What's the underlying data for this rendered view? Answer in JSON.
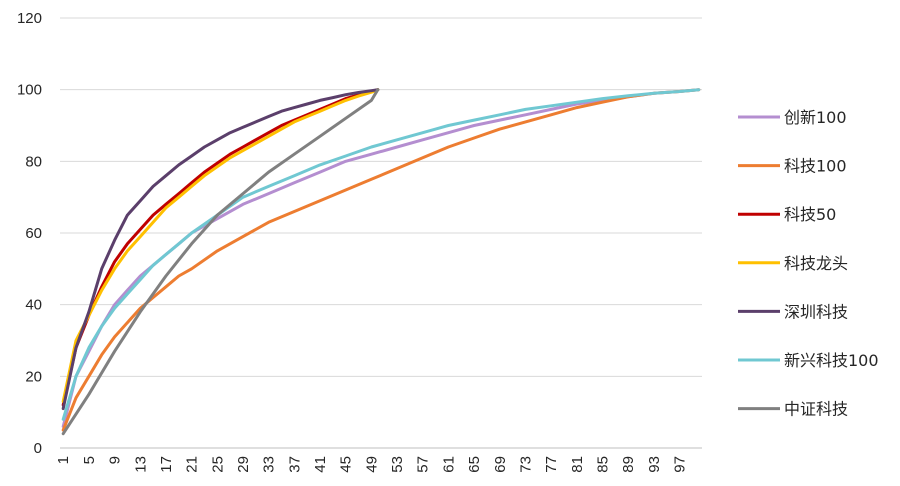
{
  "chart_data": {
    "type": "line",
    "title": "",
    "xlabel": "",
    "ylabel": "",
    "ylim": [
      0,
      120
    ],
    "yticks": [
      0,
      20,
      40,
      60,
      80,
      100,
      120
    ],
    "xlim": [
      1,
      100
    ],
    "xticks": [
      1,
      5,
      9,
      13,
      17,
      21,
      25,
      29,
      33,
      37,
      41,
      45,
      49,
      53,
      57,
      61,
      65,
      69,
      73,
      77,
      81,
      85,
      89,
      93,
      97
    ],
    "grid": "horizontal",
    "legend_position": "right",
    "series": [
      {
        "name": "创新100",
        "color": "#b48ed0",
        "points": [
          [
            1,
            6
          ],
          [
            3,
            20
          ],
          [
            5,
            27
          ],
          [
            7,
            34
          ],
          [
            9,
            40
          ],
          [
            11,
            44
          ],
          [
            13,
            48
          ],
          [
            15,
            51
          ],
          [
            17,
            54
          ],
          [
            19,
            57
          ],
          [
            21,
            60
          ],
          [
            25,
            64
          ],
          [
            29,
            68
          ],
          [
            33,
            71
          ],
          [
            37,
            74
          ],
          [
            41,
            77
          ],
          [
            45,
            80
          ],
          [
            49,
            82
          ],
          [
            53,
            84
          ],
          [
            57,
            86
          ],
          [
            61,
            88
          ],
          [
            65,
            90
          ],
          [
            69,
            91.5
          ],
          [
            73,
            93
          ],
          [
            77,
            94.5
          ],
          [
            81,
            96
          ],
          [
            85,
            97
          ],
          [
            89,
            98
          ],
          [
            93,
            99
          ],
          [
            97,
            99.5
          ],
          [
            100,
            100
          ]
        ]
      },
      {
        "name": "科技100",
        "color": "#ed7d31",
        "points": [
          [
            1,
            5
          ],
          [
            3,
            14
          ],
          [
            5,
            20
          ],
          [
            7,
            26
          ],
          [
            9,
            31
          ],
          [
            11,
            35
          ],
          [
            13,
            39
          ],
          [
            15,
            42
          ],
          [
            17,
            45
          ],
          [
            19,
            48
          ],
          [
            21,
            50
          ],
          [
            25,
            55
          ],
          [
            29,
            59
          ],
          [
            33,
            63
          ],
          [
            37,
            66
          ],
          [
            41,
            69
          ],
          [
            45,
            72
          ],
          [
            49,
            75
          ],
          [
            53,
            78
          ],
          [
            57,
            81
          ],
          [
            61,
            84
          ],
          [
            65,
            86.5
          ],
          [
            69,
            89
          ],
          [
            73,
            91
          ],
          [
            77,
            93
          ],
          [
            81,
            95
          ],
          [
            85,
            96.5
          ],
          [
            89,
            98
          ],
          [
            93,
            99
          ],
          [
            97,
            99.5
          ],
          [
            100,
            100
          ]
        ]
      },
      {
        "name": "科技50",
        "color": "#c00000",
        "points": [
          [
            1,
            12
          ],
          [
            3,
            28
          ],
          [
            5,
            37
          ],
          [
            7,
            45
          ],
          [
            9,
            52
          ],
          [
            11,
            57
          ],
          [
            13,
            61
          ],
          [
            15,
            65
          ],
          [
            17,
            68
          ],
          [
            19,
            71
          ],
          [
            21,
            74
          ],
          [
            23,
            77
          ],
          [
            25,
            79.5
          ],
          [
            27,
            82
          ],
          [
            29,
            84
          ],
          [
            31,
            86
          ],
          [
            33,
            88
          ],
          [
            35,
            90
          ],
          [
            37,
            91.5
          ],
          [
            39,
            93
          ],
          [
            41,
            94.5
          ],
          [
            43,
            96
          ],
          [
            45,
            97.5
          ],
          [
            47,
            98.5
          ],
          [
            49,
            99.5
          ],
          [
            50,
            100
          ]
        ]
      },
      {
        "name": "科技龙头",
        "color": "#ffc000",
        "points": [
          [
            1,
            13
          ],
          [
            3,
            30
          ],
          [
            5,
            37
          ],
          [
            7,
            44
          ],
          [
            9,
            50
          ],
          [
            11,
            55
          ],
          [
            13,
            59
          ],
          [
            15,
            63
          ],
          [
            17,
            67
          ],
          [
            19,
            70
          ],
          [
            21,
            73
          ],
          [
            23,
            76
          ],
          [
            25,
            78.5
          ],
          [
            27,
            81
          ],
          [
            29,
            83
          ],
          [
            31,
            85
          ],
          [
            33,
            87
          ],
          [
            35,
            89
          ],
          [
            37,
            91
          ],
          [
            39,
            92.5
          ],
          [
            41,
            94
          ],
          [
            43,
            95.5
          ],
          [
            45,
            97
          ],
          [
            47,
            98.2
          ],
          [
            49,
            99.3
          ],
          [
            50,
            100
          ]
        ]
      },
      {
        "name": "深圳科技",
        "color": "#5b3f6b",
        "points": [
          [
            1,
            11
          ],
          [
            3,
            28
          ],
          [
            5,
            38
          ],
          [
            7,
            50
          ],
          [
            9,
            58
          ],
          [
            11,
            65
          ],
          [
            13,
            69
          ],
          [
            15,
            73
          ],
          [
            17,
            76
          ],
          [
            19,
            79
          ],
          [
            21,
            81.5
          ],
          [
            23,
            84
          ],
          [
            25,
            86
          ],
          [
            27,
            88
          ],
          [
            29,
            89.5
          ],
          [
            31,
            91
          ],
          [
            33,
            92.5
          ],
          [
            35,
            94
          ],
          [
            37,
            95
          ],
          [
            39,
            96
          ],
          [
            41,
            97
          ],
          [
            43,
            97.8
          ],
          [
            45,
            98.6
          ],
          [
            47,
            99.2
          ],
          [
            49,
            99.7
          ],
          [
            50,
            100
          ]
        ]
      },
      {
        "name": "新兴科技100",
        "color": "#70c8d2",
        "points": [
          [
            1,
            8
          ],
          [
            3,
            20
          ],
          [
            5,
            28
          ],
          [
            7,
            34
          ],
          [
            9,
            39
          ],
          [
            11,
            43
          ],
          [
            13,
            47
          ],
          [
            15,
            51
          ],
          [
            17,
            54
          ],
          [
            19,
            57
          ],
          [
            21,
            60
          ],
          [
            25,
            65
          ],
          [
            29,
            70
          ],
          [
            33,
            73
          ],
          [
            37,
            76
          ],
          [
            41,
            79
          ],
          [
            45,
            81.5
          ],
          [
            49,
            84
          ],
          [
            53,
            86
          ],
          [
            57,
            88
          ],
          [
            61,
            90
          ],
          [
            65,
            91.5
          ],
          [
            69,
            93
          ],
          [
            73,
            94.5
          ],
          [
            77,
            95.5
          ],
          [
            81,
            96.5
          ],
          [
            85,
            97.5
          ],
          [
            89,
            98.3
          ],
          [
            93,
            99
          ],
          [
            97,
            99.5
          ],
          [
            100,
            100
          ]
        ]
      },
      {
        "name": "中证科技",
        "color": "#808080",
        "points": [
          [
            1,
            4
          ],
          [
            5,
            15
          ],
          [
            9,
            27
          ],
          [
            13,
            38
          ],
          [
            17,
            48
          ],
          [
            21,
            57
          ],
          [
            25,
            65
          ],
          [
            29,
            71
          ],
          [
            33,
            77
          ],
          [
            37,
            82
          ],
          [
            41,
            87
          ],
          [
            45,
            92
          ],
          [
            49,
            97
          ],
          [
            50,
            100
          ]
        ]
      }
    ]
  }
}
